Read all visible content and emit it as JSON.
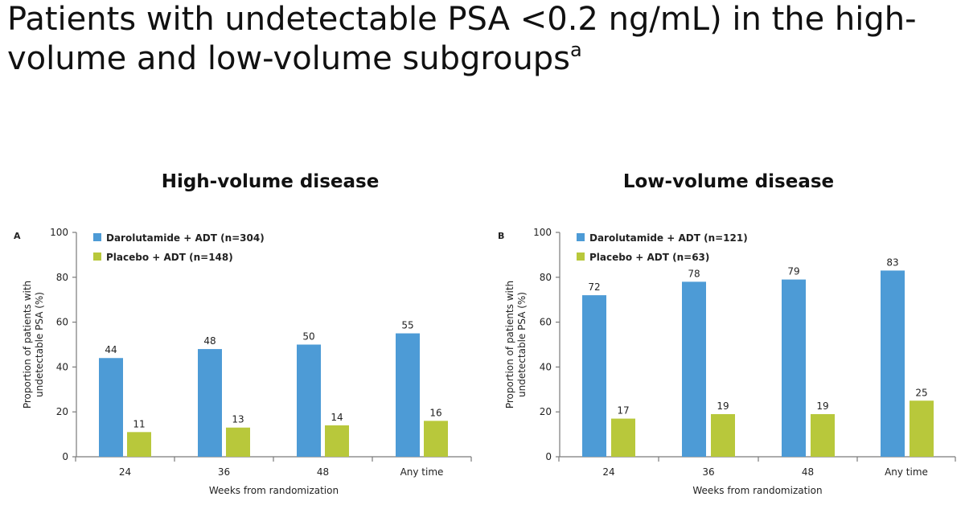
{
  "slide": {
    "title": "Patients with undetectable PSA <0.2 ng/mL) in the high-volume and low-volume subgroups",
    "title_superscript": "a"
  },
  "colors": {
    "darolutamide": "#4d9bd6",
    "placebo": "#b8c83b",
    "axis": "#7a7a7a"
  },
  "chart_data": [
    {
      "type": "bar",
      "panel_label": "A",
      "title": "High-volume disease",
      "categories": [
        "24",
        "36",
        "48",
        "Any time"
      ],
      "series": [
        {
          "name": "Darolutamide + ADT (n=304)",
          "values": [
            44,
            48,
            50,
            55
          ]
        },
        {
          "name": "Placebo + ADT (n=148)",
          "values": [
            11,
            13,
            14,
            16
          ]
        }
      ],
      "xlabel": "Weeks from randomization",
      "ylabel": "Proportion of patients with undetectable PSA (%)",
      "ylim": [
        0,
        100
      ],
      "yticks": [
        0,
        20,
        40,
        60,
        80,
        100
      ],
      "grid": false,
      "legend": "top-left"
    },
    {
      "type": "bar",
      "panel_label": "B",
      "title": "Low-volume disease",
      "categories": [
        "24",
        "36",
        "48",
        "Any time"
      ],
      "series": [
        {
          "name": "Darolutamide + ADT (n=121)",
          "values": [
            72,
            78,
            79,
            83
          ]
        },
        {
          "name": "Placebo + ADT (n=63)",
          "values": [
            17,
            19,
            19,
            25
          ]
        }
      ],
      "xlabel": "Weeks from randomization",
      "ylabel": "Proportion of patients with undetectable PSA (%)",
      "ylim": [
        0,
        100
      ],
      "yticks": [
        0,
        20,
        40,
        60,
        80,
        100
      ],
      "grid": false,
      "legend": "top-left"
    }
  ]
}
